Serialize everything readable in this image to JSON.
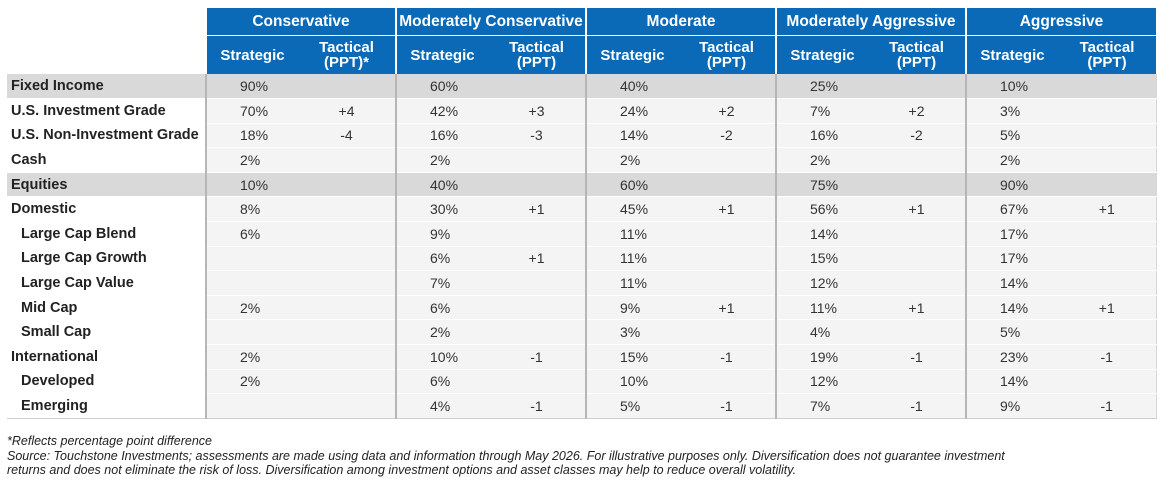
{
  "groups": [
    "Conservative",
    "Moderately Conservative",
    "Moderate",
    "Moderately Aggressive",
    "Aggressive"
  ],
  "sub_headers": [
    {
      "strategic": "Strategic",
      "tactical_1": "Tactical",
      "tactical_2": "(PPT)*"
    },
    {
      "strategic": "Strategic",
      "tactical_1": "Tactical",
      "tactical_2": "(PPT)"
    },
    {
      "strategic": "Strategic",
      "tactical_1": "Tactical",
      "tactical_2": "(PPT)"
    },
    {
      "strategic": "Strategic",
      "tactical_1": "Tactical",
      "tactical_2": "(PPT)"
    },
    {
      "strategic": "Strategic",
      "tactical_1": "Tactical",
      "tactical_2": "(PPT)"
    }
  ],
  "rows": [
    {
      "label": "Fixed Income",
      "section": true,
      "indent": false,
      "cells": [
        "90%",
        "",
        "60%",
        "",
        "40%",
        "",
        "25%",
        "",
        "10%",
        ""
      ]
    },
    {
      "label": "U.S. Investment Grade",
      "section": false,
      "indent": false,
      "cells": [
        "70%",
        "+4",
        "42%",
        "+3",
        "24%",
        "+2",
        "7%",
        "+2",
        "3%",
        ""
      ]
    },
    {
      "label": "U.S. Non-Investment Grade",
      "section": false,
      "indent": false,
      "cells": [
        "18%",
        "-4",
        "16%",
        "-3",
        "14%",
        "-2",
        "16%",
        "-2",
        "5%",
        ""
      ]
    },
    {
      "label": "Cash",
      "section": false,
      "indent": false,
      "cells": [
        "2%",
        "",
        "2%",
        "",
        "2%",
        "",
        "2%",
        "",
        "2%",
        ""
      ]
    },
    {
      "label": "Equities",
      "section": true,
      "indent": false,
      "cells": [
        "10%",
        "",
        "40%",
        "",
        "60%",
        "",
        "75%",
        "",
        "90%",
        ""
      ]
    },
    {
      "label": "Domestic",
      "section": false,
      "indent": false,
      "cells": [
        "8%",
        "",
        "30%",
        "+1",
        "45%",
        "+1",
        "56%",
        "+1",
        "67%",
        "+1"
      ]
    },
    {
      "label": "Large Cap Blend",
      "section": false,
      "indent": true,
      "cells": [
        "6%",
        "",
        "9%",
        "",
        "11%",
        "",
        "14%",
        "",
        "17%",
        ""
      ]
    },
    {
      "label": "Large Cap Growth",
      "section": false,
      "indent": true,
      "cells": [
        "",
        "",
        "6%",
        "+1",
        "11%",
        "",
        "15%",
        "",
        "17%",
        ""
      ]
    },
    {
      "label": "Large Cap Value",
      "section": false,
      "indent": true,
      "cells": [
        "",
        "",
        "7%",
        "",
        "11%",
        "",
        "12%",
        "",
        "14%",
        ""
      ]
    },
    {
      "label": "Mid Cap",
      "section": false,
      "indent": true,
      "cells": [
        "2%",
        "",
        "6%",
        "",
        "9%",
        "+1",
        "11%",
        "+1",
        "14%",
        "+1"
      ]
    },
    {
      "label": "Small Cap",
      "section": false,
      "indent": true,
      "cells": [
        "",
        "",
        "2%",
        "",
        "3%",
        "",
        "4%",
        "",
        "5%",
        ""
      ]
    },
    {
      "label": "International",
      "section": false,
      "indent": false,
      "cells": [
        "2%",
        "",
        "10%",
        "-1",
        "15%",
        "-1",
        "19%",
        "-1",
        "23%",
        "-1"
      ]
    },
    {
      "label": "Developed",
      "section": false,
      "indent": true,
      "cells": [
        "2%",
        "",
        "6%",
        "",
        "10%",
        "",
        "12%",
        "",
        "14%",
        ""
      ]
    },
    {
      "label": "Emerging",
      "section": false,
      "indent": true,
      "cells": [
        "",
        "",
        "4%",
        "-1",
        "5%",
        "-1",
        "7%",
        "-1",
        "9%",
        "-1"
      ]
    }
  ],
  "footnote": "*Reflects percentage point difference",
  "source_line_1": "Source: Touchstone Investments; assessments are made using data and information through May 2026. For illustrative purposes only. Diversification does not guarantee investment",
  "source_line_2": "returns and does not eliminate the risk of loss. Diversification among investment options and asset classes may help to reduce overall volatility.",
  "colors": {
    "header_blue": "#0a6ab7",
    "section_gray": "#d9d9d9",
    "row_gray": "#f4f4f4"
  }
}
